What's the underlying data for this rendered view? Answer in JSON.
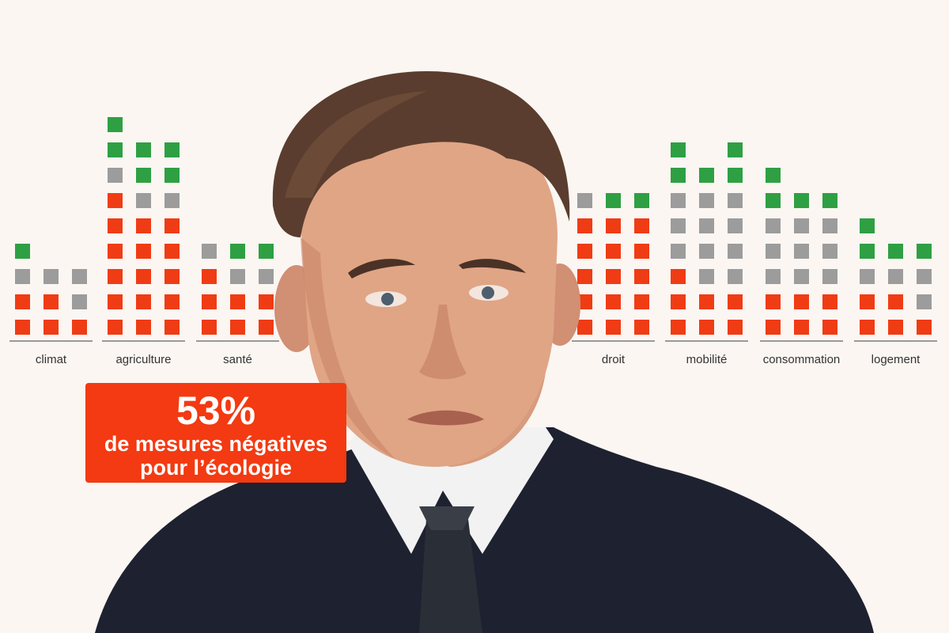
{
  "colors": {
    "positive": "#2ea043",
    "neutral": "#9c9c9c",
    "negative": "#f03c14",
    "background": "#fbf6f2",
    "callout": "#f33a12"
  },
  "callout": {
    "percent": "53%",
    "line1": "de mesures négatives",
    "line2": "pour l’écologie"
  },
  "categories": [
    {
      "label": "climat",
      "columns": [
        {
          "negative": 2,
          "neutral": 1,
          "positive": 1
        },
        {
          "negative": 2,
          "neutral": 1,
          "positive": 0
        },
        {
          "negative": 1,
          "neutral": 2,
          "positive": 0
        }
      ]
    },
    {
      "label": "agriculture",
      "columns": [
        {
          "negative": 6,
          "neutral": 1,
          "positive": 2
        },
        {
          "negative": 5,
          "neutral": 1,
          "positive": 2
        },
        {
          "negative": 5,
          "neutral": 1,
          "positive": 2
        }
      ]
    },
    {
      "label": "santé",
      "columns": [
        {
          "negative": 3,
          "neutral": 1,
          "positive": 0
        },
        {
          "negative": 2,
          "neutral": 1,
          "positive": 1
        },
        {
          "negative": 2,
          "neutral": 1,
          "positive": 1
        }
      ]
    },
    {
      "label": "droit",
      "columns": [
        {
          "negative": 5,
          "neutral": 1,
          "positive": 0
        },
        {
          "negative": 5,
          "neutral": 0,
          "positive": 1
        },
        {
          "negative": 5,
          "neutral": 0,
          "positive": 1
        }
      ]
    },
    {
      "label": "mobilité",
      "columns": [
        {
          "negative": 3,
          "neutral": 3,
          "positive": 2
        },
        {
          "negative": 2,
          "neutral": 4,
          "positive": 1
        },
        {
          "negative": 2,
          "neutral": 4,
          "positive": 2
        }
      ]
    },
    {
      "label": "consommation",
      "columns": [
        {
          "negative": 2,
          "neutral": 3,
          "positive": 2
        },
        {
          "negative": 2,
          "neutral": 3,
          "positive": 1
        },
        {
          "negative": 2,
          "neutral": 3,
          "positive": 1
        }
      ]
    },
    {
      "label": "logement",
      "columns": [
        {
          "negative": 2,
          "neutral": 1,
          "positive": 2
        },
        {
          "negative": 2,
          "neutral": 1,
          "positive": 1
        },
        {
          "negative": 1,
          "neutral": 2,
          "positive": 1
        }
      ]
    }
  ]
}
